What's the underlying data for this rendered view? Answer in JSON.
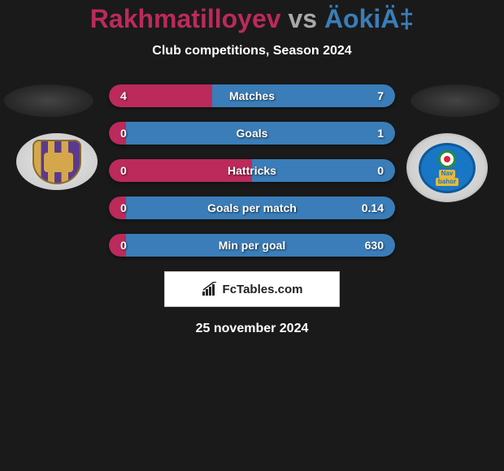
{
  "header": {
    "title_p1": "Rakhmatilloyev",
    "title_vs": " vs ",
    "title_p2": "ÄokiÄ‡",
    "title_p1_color": "#bb2a5a",
    "title_vs_color": "#a8a8a8",
    "title_p2_color": "#3a7db8",
    "subtitle": "Club competitions, Season 2024"
  },
  "stats": {
    "rows": [
      {
        "label": "Matches",
        "left": "4",
        "right": "7",
        "left_pct": 36,
        "left_color": "#bb2a5a",
        "right_color": "#3a7db8"
      },
      {
        "label": "Goals",
        "left": "0",
        "right": "1",
        "left_pct": 6,
        "left_color": "#bb2a5a",
        "right_color": "#3a7db8"
      },
      {
        "label": "Hattricks",
        "left": "0",
        "right": "0",
        "left_pct": 50,
        "left_color": "#bb2a5a",
        "right_color": "#3a7db8"
      },
      {
        "label": "Goals per match",
        "left": "0",
        "right": "0.14",
        "left_pct": 6,
        "left_color": "#bb2a5a",
        "right_color": "#3a7db8"
      },
      {
        "label": "Min per goal",
        "left": "0",
        "right": "630",
        "left_pct": 6,
        "left_color": "#bb2a5a",
        "right_color": "#3a7db8"
      }
    ]
  },
  "brand": {
    "text": "FcTables.com",
    "icon_bar_color": "#222222"
  },
  "footer": {
    "date": "25 november 2024"
  },
  "badges": {
    "right_text1": "Nav",
    "right_text2": "bahor"
  }
}
